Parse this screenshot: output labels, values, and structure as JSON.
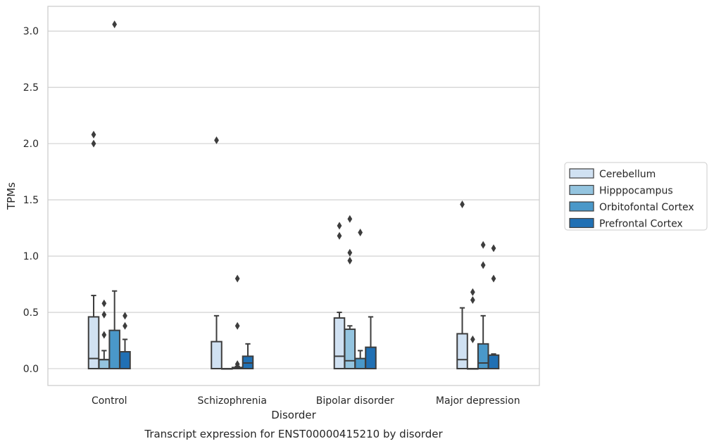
{
  "chart_data": {
    "type": "box",
    "title": "Transcript expression for ENST00000415210 by disorder",
    "xlabel": "Disorder",
    "ylabel": "TPMs",
    "ylim": [
      -0.15,
      3.22
    ],
    "yticks": [
      "0.0",
      "0.5",
      "1.0",
      "1.5",
      "2.0",
      "2.5",
      "3.0"
    ],
    "grid": "horizontal",
    "legend_position": "right",
    "categories": [
      "Control",
      "Schizophrenia",
      "Bipolar disorder",
      "Major depression"
    ],
    "series": [
      {
        "name": "Cerebellum",
        "color": "#d0e1f2",
        "boxes": [
          {
            "q1": 0.0,
            "median": 0.09,
            "q3": 0.46,
            "whisker_low": 0.0,
            "whisker_high": 0.65,
            "outliers": [
              2.0,
              2.08
            ]
          },
          {
            "q1": 0.0,
            "median": 0.0,
            "q3": 0.24,
            "whisker_low": 0.0,
            "whisker_high": 0.47,
            "outliers": [
              2.03
            ]
          },
          {
            "q1": 0.0,
            "median": 0.11,
            "q3": 0.45,
            "whisker_low": 0.0,
            "whisker_high": 0.5,
            "outliers": [
              1.18,
              1.27
            ]
          },
          {
            "q1": 0.0,
            "median": 0.08,
            "q3": 0.31,
            "whisker_low": 0.0,
            "whisker_high": 0.54,
            "outliers": [
              1.46
            ]
          }
        ]
      },
      {
        "name": "Hipppocampus",
        "color": "#94c4df",
        "boxes": [
          {
            "q1": 0.0,
            "median": 0.08,
            "q3": 0.08,
            "whisker_low": 0.0,
            "whisker_high": 0.16,
            "outliers": [
              0.3,
              0.48,
              0.58
            ]
          },
          {
            "q1": 0.0,
            "median": 0.0,
            "q3": 0.0,
            "whisker_low": 0.0,
            "whisker_high": 0.0,
            "outliers": []
          },
          {
            "q1": 0.0,
            "median": 0.07,
            "q3": 0.35,
            "whisker_low": 0.0,
            "whisker_high": 0.38,
            "outliers": [
              0.96,
              1.03,
              1.33
            ]
          },
          {
            "q1": 0.0,
            "median": 0.0,
            "q3": 0.0,
            "whisker_low": 0.0,
            "whisker_high": 0.0,
            "outliers": [
              0.26,
              0.61,
              0.68
            ]
          }
        ]
      },
      {
        "name": "Orbitofontal Cortex",
        "color": "#4a98c9",
        "boxes": [
          {
            "q1": 0.0,
            "median": 0.0,
            "q3": 0.34,
            "whisker_low": 0.0,
            "whisker_high": 0.69,
            "outliers": [
              3.06
            ]
          },
          {
            "q1": 0.0,
            "median": 0.01,
            "q3": 0.01,
            "whisker_low": 0.0,
            "whisker_high": 0.02,
            "outliers": [
              0.04,
              0.38,
              0.8
            ]
          },
          {
            "q1": 0.0,
            "median": 0.0,
            "q3": 0.09,
            "whisker_low": 0.0,
            "whisker_high": 0.16,
            "outliers": [
              1.21
            ]
          },
          {
            "q1": 0.0,
            "median": 0.05,
            "q3": 0.22,
            "whisker_low": 0.0,
            "whisker_high": 0.47,
            "outliers": [
              0.92,
              1.1
            ]
          }
        ]
      },
      {
        "name": "Prefrontal Cortex",
        "color": "#2070b4",
        "boxes": [
          {
            "q1": 0.0,
            "median": 0.0,
            "q3": 0.15,
            "whisker_low": 0.0,
            "whisker_high": 0.26,
            "outliers": [
              0.38,
              0.47
            ]
          },
          {
            "q1": 0.0,
            "median": 0.05,
            "q3": 0.11,
            "whisker_low": 0.0,
            "whisker_high": 0.22,
            "outliers": []
          },
          {
            "q1": 0.0,
            "median": 0.0,
            "q3": 0.19,
            "whisker_low": 0.0,
            "whisker_high": 0.46,
            "outliers": []
          },
          {
            "q1": 0.0,
            "median": 0.0,
            "q3": 0.12,
            "whisker_low": 0.0,
            "whisker_high": 0.13,
            "outliers": [
              0.8,
              1.07
            ]
          }
        ]
      }
    ]
  }
}
